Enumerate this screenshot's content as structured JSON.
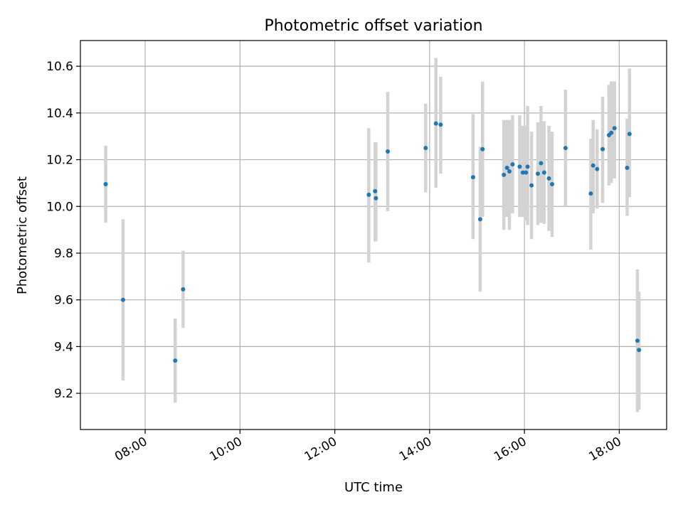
{
  "chart_data": {
    "type": "scatter",
    "title": "Photometric offset variation",
    "xlabel": "UTC time",
    "ylabel": "Photometric offset",
    "xlim": [
      "06:38",
      "19:00"
    ],
    "ylim": [
      9.045,
      10.71
    ],
    "grid": true,
    "x_ticks": [
      "08:00",
      "10:00",
      "12:00",
      "14:00",
      "16:00",
      "18:00"
    ],
    "y_ticks": [
      "9.2",
      "9.4",
      "9.6",
      "9.8",
      "10.0",
      "10.2",
      "10.4",
      "10.6"
    ],
    "marker_color": "#1f77b4",
    "errorbar_color": "#d3d3d3",
    "points": [
      {
        "x": "07:10",
        "y": 10.095,
        "err_low": 9.93,
        "err_high": 10.26
      },
      {
        "x": "07:32",
        "y": 9.6,
        "err_low": 9.255,
        "err_high": 9.945
      },
      {
        "x": "08:38",
        "y": 9.34,
        "err_low": 9.16,
        "err_high": 9.52
      },
      {
        "x": "08:48",
        "y": 9.645,
        "err_low": 9.48,
        "err_high": 9.81
      },
      {
        "x": "12:43",
        "y": 10.05,
        "err_low": 9.76,
        "err_high": 10.335
      },
      {
        "x": "12:51",
        "y": 10.065,
        "err_low": 9.85,
        "err_high": 10.275
      },
      {
        "x": "12:52",
        "y": 10.035,
        "err_low": 9.85,
        "err_high": 10.275
      },
      {
        "x": "13:07",
        "y": 10.235,
        "err_low": 9.98,
        "err_high": 10.49
      },
      {
        "x": "13:55",
        "y": 10.25,
        "err_low": 10.06,
        "err_high": 10.44
      },
      {
        "x": "14:08",
        "y": 10.355,
        "err_low": 10.08,
        "err_high": 10.635
      },
      {
        "x": "14:14",
        "y": 10.35,
        "err_low": 10.14,
        "err_high": 10.555
      },
      {
        "x": "14:55",
        "y": 10.125,
        "err_low": 9.86,
        "err_high": 10.395
      },
      {
        "x": "15:04",
        "y": 9.945,
        "err_low": 9.635,
        "err_high": 10.255
      },
      {
        "x": "15:07",
        "y": 10.245,
        "err_low": 9.955,
        "err_high": 10.535
      },
      {
        "x": "15:34",
        "y": 10.135,
        "err_low": 9.9,
        "err_high": 10.37
      },
      {
        "x": "15:38",
        "y": 10.165,
        "err_low": 9.955,
        "err_high": 10.37
      },
      {
        "x": "15:41",
        "y": 10.15,
        "err_low": 9.9,
        "err_high": 10.37
      },
      {
        "x": "15:45",
        "y": 10.18,
        "err_low": 9.97,
        "err_high": 10.39
      },
      {
        "x": "15:54",
        "y": 10.17,
        "err_low": 9.955,
        "err_high": 10.39
      },
      {
        "x": "15:58",
        "y": 10.145,
        "err_low": 9.955,
        "err_high": 10.345
      },
      {
        "x": "16:02",
        "y": 10.145,
        "err_low": 9.94,
        "err_high": 10.345
      },
      {
        "x": "16:04",
        "y": 10.17,
        "err_low": 9.92,
        "err_high": 10.43
      },
      {
        "x": "16:09",
        "y": 10.09,
        "err_low": 9.86,
        "err_high": 10.32
      },
      {
        "x": "16:17",
        "y": 10.14,
        "err_low": 9.92,
        "err_high": 10.36
      },
      {
        "x": "16:21",
        "y": 10.185,
        "err_low": 9.93,
        "err_high": 10.43
      },
      {
        "x": "16:25",
        "y": 10.145,
        "err_low": 9.925,
        "err_high": 10.365
      },
      {
        "x": "16:31",
        "y": 10.12,
        "err_low": 9.895,
        "err_high": 10.345
      },
      {
        "x": "16:35",
        "y": 10.095,
        "err_low": 9.87,
        "err_high": 10.32
      },
      {
        "x": "16:52",
        "y": 10.25,
        "err_low": 10.0,
        "err_high": 10.5
      },
      {
        "x": "17:24",
        "y": 10.055,
        "err_low": 9.815,
        "err_high": 10.29
      },
      {
        "x": "17:27",
        "y": 10.175,
        "err_low": 9.97,
        "err_high": 10.37
      },
      {
        "x": "17:32",
        "y": 10.16,
        "err_low": 9.99,
        "err_high": 10.33
      },
      {
        "x": "17:39",
        "y": 10.245,
        "err_low": 10.015,
        "err_high": 10.47
      },
      {
        "x": "17:47",
        "y": 10.305,
        "err_low": 10.09,
        "err_high": 10.52
      },
      {
        "x": "17:50",
        "y": 10.315,
        "err_low": 10.1,
        "err_high": 10.535
      },
      {
        "x": "17:54",
        "y": 10.335,
        "err_low": 10.12,
        "err_high": 10.535
      },
      {
        "x": "18:10",
        "y": 10.165,
        "err_low": 9.96,
        "err_high": 10.375
      },
      {
        "x": "18:13",
        "y": 10.31,
        "err_low": 10.04,
        "err_high": 10.59
      },
      {
        "x": "18:23",
        "y": 9.425,
        "err_low": 9.12,
        "err_high": 9.73
      },
      {
        "x": "18:25",
        "y": 9.385,
        "err_low": 9.13,
        "err_high": 9.635
      }
    ]
  }
}
